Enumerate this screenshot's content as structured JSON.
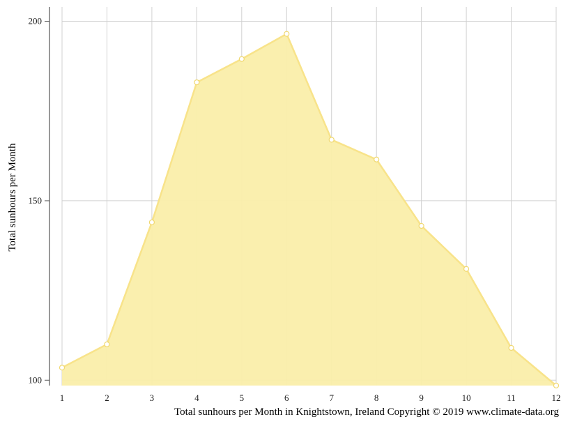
{
  "chart_data": {
    "type": "area",
    "title": "",
    "xlabel": "",
    "ylabel": "Total sunhours per Month",
    "x": [
      1,
      2,
      3,
      4,
      5,
      6,
      7,
      8,
      9,
      10,
      11,
      12
    ],
    "series": [
      {
        "values": [
          103.5,
          110,
          144,
          183,
          189.5,
          196.5,
          167,
          161.5,
          143,
          131,
          109,
          98.5
        ]
      }
    ],
    "xlim": [
      1,
      12
    ],
    "ylim": [
      98.5,
      204
    ],
    "yticks": [
      100,
      150,
      200
    ],
    "grid": true,
    "legend": "none",
    "colors": {
      "fill": "#faeeaa",
      "line": "#f8e38a",
      "marker_fill": "#ffffff",
      "grid": "#d0d0d0",
      "axis": "#555555"
    }
  },
  "caption": "Total sunhours per Month in Knightstown, Ireland Copyright © 2019 www.climate-data.org"
}
